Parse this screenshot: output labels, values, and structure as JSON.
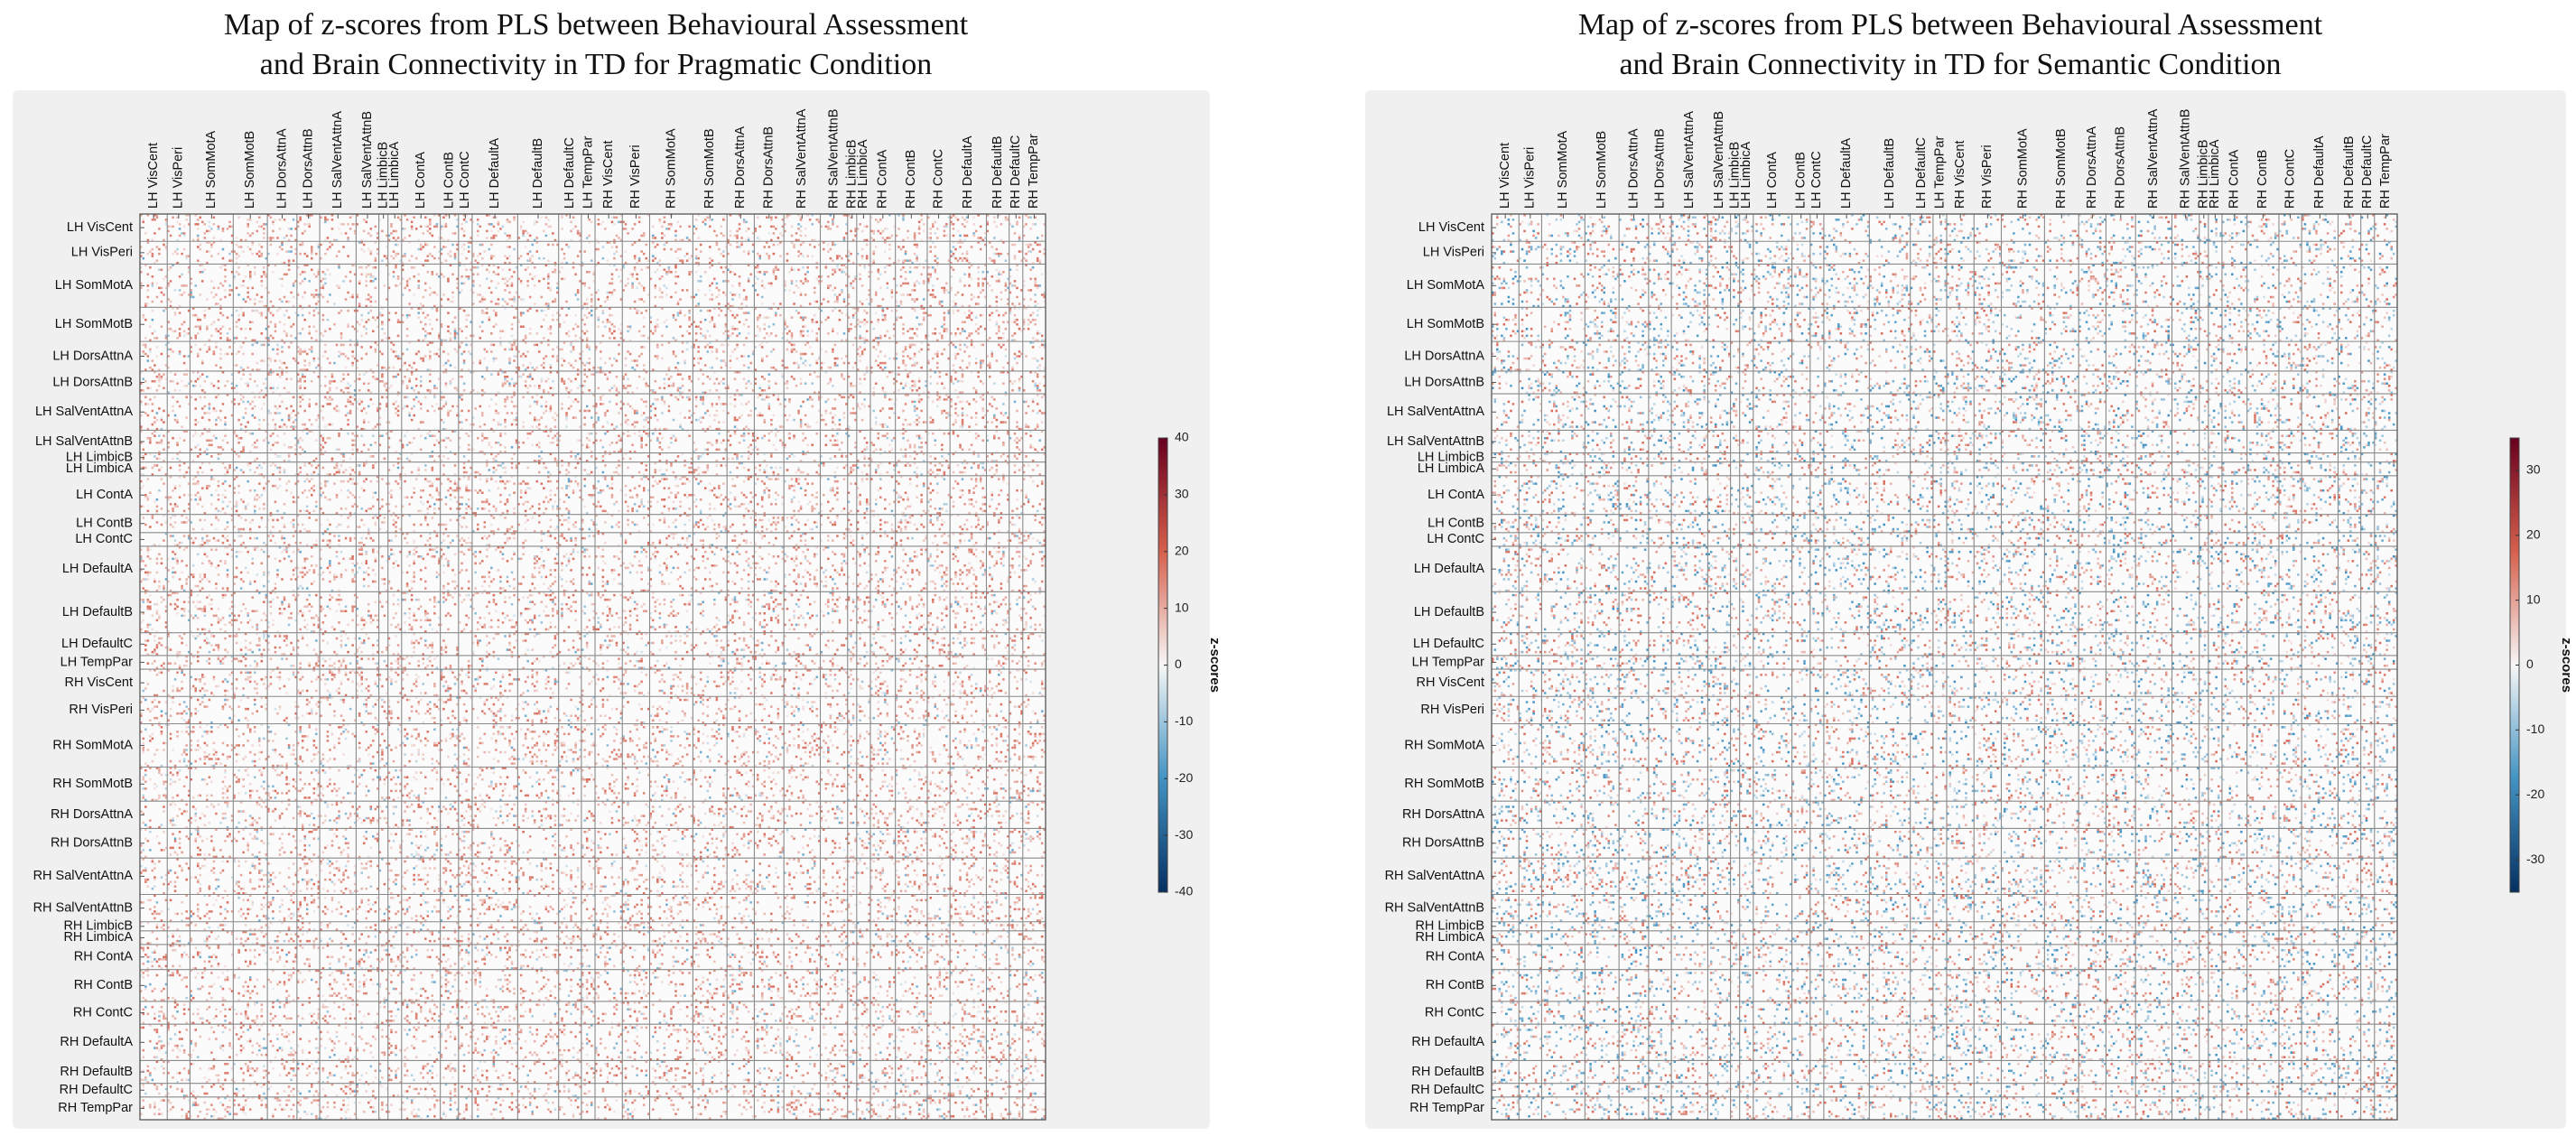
{
  "chart_data": [
    {
      "type": "heatmap",
      "title": [
        "Map of z-scores from PLS between Behavioural Assessment",
        "and Brain Connectivity in TD for Pragmatic Condition"
      ],
      "row_labels": [
        "LH VisCent",
        "LH VisPeri",
        "LH SomMotA",
        "LH SomMotB",
        "LH DorsAttnA",
        "LH DorsAttnB",
        "LH SalVentAttnA",
        "LH SalVentAttnB",
        "LH LimbicB",
        "LH LimbicA",
        "LH ContA",
        "LH ContB",
        "LH ContC",
        "LH DefaultA",
        "LH DefaultB",
        "LH DefaultC",
        "LH TempPar",
        "RH VisCent",
        "RH VisPeri",
        "RH SomMotA",
        "RH SomMotB",
        "RH DorsAttnA",
        "RH DorsAttnB",
        "RH SalVentAttnA",
        "RH SalVentAttnB",
        "RH LimbicB",
        "RH LimbicA",
        "RH ContA",
        "RH ContB",
        "RH ContC",
        "RH DefaultA",
        "RH DefaultB",
        "RH DefaultC",
        "RH TempPar"
      ],
      "col_labels": [
        "LH VisCent",
        "LH VisPeri",
        "LH SomMotA",
        "LH SomMotB",
        "LH DorsAttnA",
        "LH DorsAttnB",
        "LH SalVentAttnA",
        "LH SalVentAttnB",
        "LH LimbicB",
        "LH LimbicA",
        "LH ContA",
        "LH ContB",
        "LH ContC",
        "LH DefaultA",
        "LH DefaultB",
        "LH DefaultC",
        "LH TempPar",
        "RH VisCent",
        "RH VisPeri",
        "RH SomMotA",
        "RH SomMotB",
        "RH DorsAttnA",
        "RH DorsAttnB",
        "RH SalVentAttnA",
        "RH SalVentAttnB",
        "RH LimbicB",
        "RH LimbicA",
        "RH ContA",
        "RH ContB",
        "RH ContC",
        "RH DefaultA",
        "RH DefaultB",
        "RH DefaultC",
        "RH TempPar"
      ],
      "network_sizes": [
        12,
        10,
        19,
        15,
        13,
        10,
        16,
        10,
        4,
        6,
        17,
        8,
        6,
        20,
        18,
        10,
        6,
        12,
        12,
        19,
        15,
        12,
        13,
        16,
        12,
        4,
        6,
        11,
        14,
        10,
        16,
        10,
        6,
        10
      ],
      "colorbar": {
        "label": "z-scores",
        "min": -40,
        "max": 40,
        "ticks": [
          40,
          30,
          20,
          10,
          0,
          -10,
          -20,
          -30,
          -40
        ]
      },
      "colormap": {
        "low": "#053061",
        "mid": "#f7f7f7",
        "high": "#67001f"
      },
      "dominant_sign": "positive"
    },
    {
      "type": "heatmap",
      "title": [
        "Map of z-scores from PLS between Behavioural Assessment",
        "and Brain Connectivity in TD for Semantic Condition"
      ],
      "row_labels": [
        "LH VisCent",
        "LH VisPeri",
        "LH SomMotA",
        "LH SomMotB",
        "LH DorsAttnA",
        "LH DorsAttnB",
        "LH SalVentAttnA",
        "LH SalVentAttnB",
        "LH LimbicB",
        "LH LimbicA",
        "LH ContA",
        "LH ContB",
        "LH ContC",
        "LH DefaultA",
        "LH DefaultB",
        "LH DefaultC",
        "LH TempPar",
        "RH VisCent",
        "RH VisPeri",
        "RH SomMotA",
        "RH SomMotB",
        "RH DorsAttnA",
        "RH DorsAttnB",
        "RH SalVentAttnA",
        "RH SalVentAttnB",
        "RH LimbicB",
        "RH LimbicA",
        "RH ContA",
        "RH ContB",
        "RH ContC",
        "RH DefaultA",
        "RH DefaultB",
        "RH DefaultC",
        "RH TempPar"
      ],
      "col_labels": [
        "LH VisCent",
        "LH VisPeri",
        "LH SomMotA",
        "LH SomMotB",
        "LH DorsAttnA",
        "LH DorsAttnB",
        "LH SalVentAttnA",
        "LH SalVentAttnB",
        "LH LimbicB",
        "LH LimbicA",
        "LH ContA",
        "LH ContB",
        "LH ContC",
        "LH DefaultA",
        "LH DefaultB",
        "LH DefaultC",
        "LH TempPar",
        "RH VisCent",
        "RH VisPeri",
        "RH SomMotA",
        "RH SomMotB",
        "RH DorsAttnA",
        "RH DorsAttnB",
        "RH SalVentAttnA",
        "RH SalVentAttnB",
        "RH LimbicB",
        "RH LimbicA",
        "RH ContA",
        "RH ContB",
        "RH ContC",
        "RH DefaultA",
        "RH DefaultB",
        "RH DefaultC",
        "RH TempPar"
      ],
      "network_sizes": [
        12,
        10,
        19,
        15,
        13,
        10,
        16,
        10,
        4,
        6,
        17,
        8,
        6,
        20,
        18,
        10,
        6,
        12,
        12,
        19,
        15,
        12,
        13,
        16,
        12,
        4,
        6,
        11,
        14,
        10,
        16,
        10,
        6,
        10
      ],
      "colorbar": {
        "label": "z-scores",
        "min": -35,
        "max": 35,
        "ticks": [
          30,
          20,
          10,
          0,
          -10,
          -20,
          -30
        ]
      },
      "colormap": {
        "low": "#053061",
        "mid": "#f7f7f7",
        "high": "#67001f"
      },
      "dominant_sign": "mixed"
    }
  ]
}
